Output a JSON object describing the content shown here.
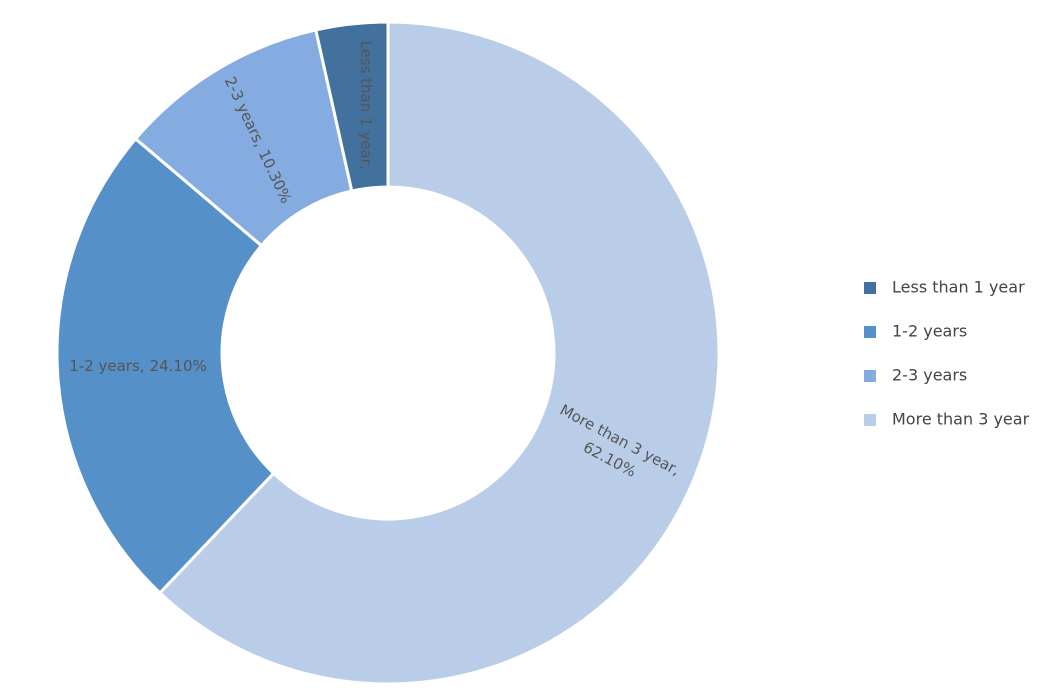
{
  "chart_data": {
    "type": "donut",
    "categories": [
      "Less than 1 year",
      "1-2 years",
      "2-3 years",
      "More than 3 year"
    ],
    "values": [
      3.5,
      24.1,
      10.3,
      62.1
    ],
    "value_labels": [
      null,
      "24.10%",
      "10.30%",
      "62.10%"
    ],
    "colors": [
      "#41719c",
      "#5690c8",
      "#85ace0",
      "#b9cde9"
    ],
    "legend": "right"
  }
}
